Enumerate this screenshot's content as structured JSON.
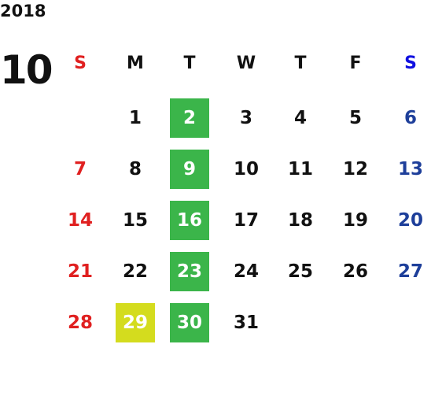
{
  "calendar": {
    "year": "2018",
    "month": "10",
    "weekdays": [
      "S",
      "M",
      "T",
      "W",
      "T",
      "F",
      "S"
    ],
    "weeks": [
      [
        null,
        1,
        2,
        3,
        4,
        5,
        6
      ],
      [
        7,
        8,
        9,
        10,
        11,
        12,
        13
      ],
      [
        14,
        15,
        16,
        17,
        18,
        19,
        20
      ],
      [
        21,
        22,
        23,
        24,
        25,
        26,
        27
      ],
      [
        28,
        29,
        30,
        31,
        null,
        null,
        null
      ]
    ]
  }
}
